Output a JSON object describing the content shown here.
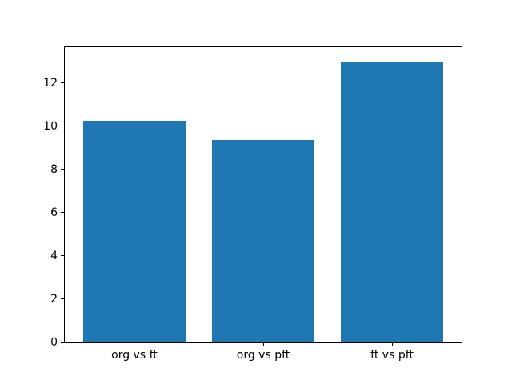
{
  "chart_data": {
    "type": "bar",
    "categories": [
      "org vs ft",
      "org vs pft",
      "ft vs pft"
    ],
    "values": [
      10.25,
      9.35,
      13.0
    ],
    "title": "",
    "xlabel": "",
    "ylabel": "",
    "ylim": [
      0,
      13.65
    ],
    "xlim": [
      -0.54,
      2.54
    ],
    "yticks": [
      0,
      2,
      4,
      6,
      8,
      10,
      12
    ],
    "bar_width": 0.8,
    "bar_color": "#1f77b4",
    "grid": false,
    "legend": null
  }
}
